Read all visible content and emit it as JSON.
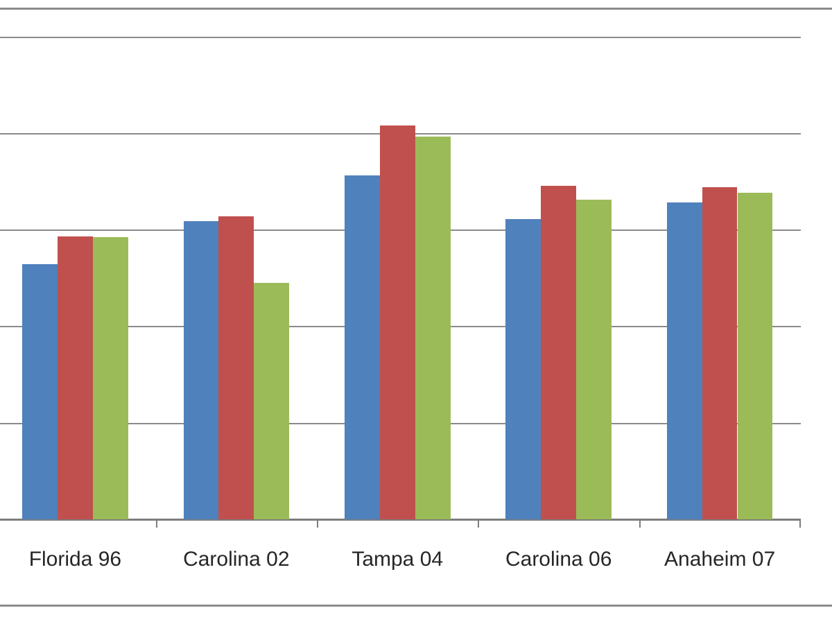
{
  "chart_data": {
    "type": "bar",
    "title": "",
    "xlabel": "",
    "ylabel": "",
    "categories": [
      "Florida 96",
      "Carolina 02",
      "Tampa 04",
      "Carolina 06",
      "Anaheim 07"
    ],
    "series": [
      {
        "name": "blue-series",
        "color": "#4F81BD",
        "values": [
          2.64,
          3.09,
          3.56,
          3.11,
          3.28
        ]
      },
      {
        "name": "red-series",
        "color": "#C0504D",
        "values": [
          2.93,
          3.14,
          4.08,
          3.45,
          3.44
        ]
      },
      {
        "name": "green-series",
        "color": "#9BBB59",
        "values": [
          2.92,
          2.45,
          3.96,
          3.31,
          3.38
        ]
      }
    ],
    "ylim": [
      0,
      5.3
    ],
    "gridline_step": 1,
    "grid": true,
    "legend_visible": false,
    "y_axis_labels_visible": false,
    "notes": "Chart is cropped: value axis labels, title and legend are outside the visible frame."
  },
  "colors": {
    "gridline": "#8a8a8a",
    "axis_line": "#7d7d7d",
    "frame_line": "#8c8c8c",
    "label_text": "#262626",
    "background": "#ffffff"
  }
}
